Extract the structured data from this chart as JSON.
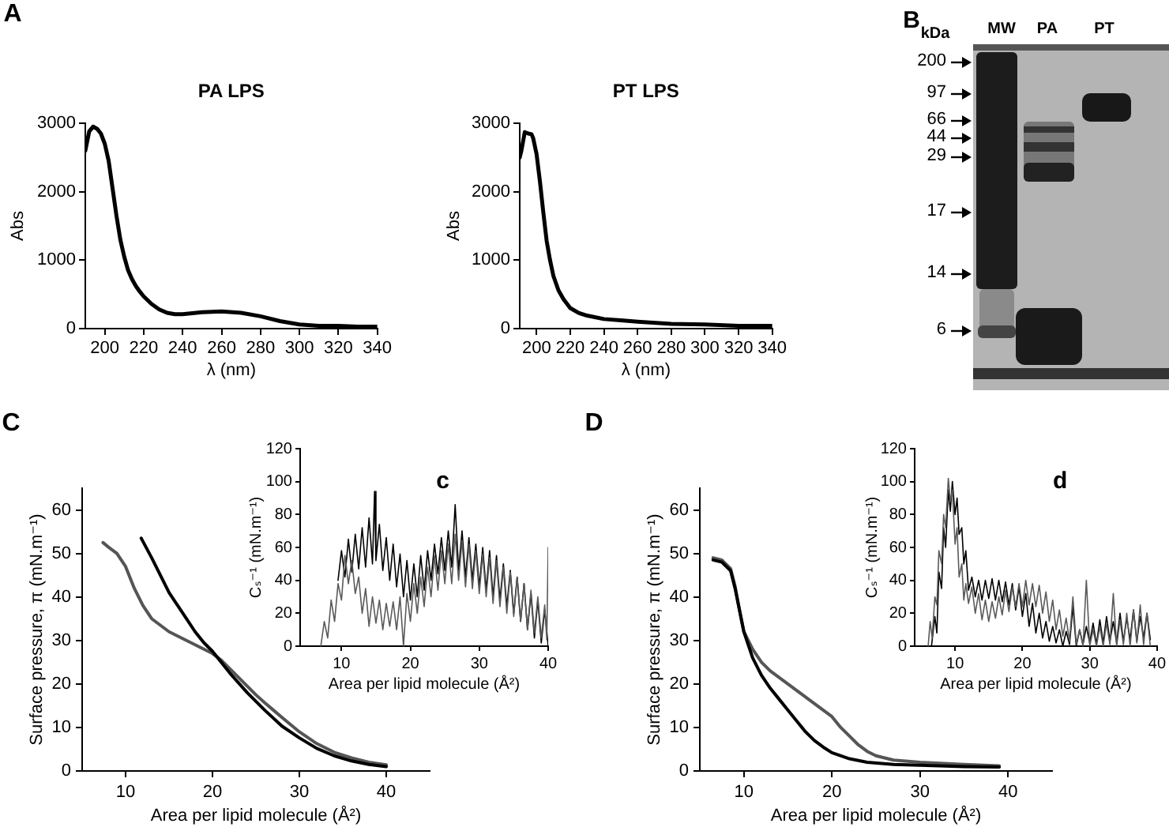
{
  "chart_data": [
    {
      "type": "line",
      "title": "PA LPS",
      "xlabel": "λ (nm)",
      "ylabel": "Abs",
      "annotations": [
        "A"
      ],
      "color": "#000000",
      "x": [
        190,
        192,
        194,
        196,
        198,
        200,
        202,
        204,
        206,
        208,
        210,
        212,
        214,
        216,
        218,
        220,
        224,
        228,
        232,
        236,
        240,
        250,
        260,
        270,
        280,
        290,
        300,
        310,
        320,
        330,
        340
      ],
      "values": [
        2600,
        2880,
        2950,
        2920,
        2850,
        2700,
        2450,
        2050,
        1650,
        1300,
        1050,
        850,
        720,
        620,
        540,
        470,
        360,
        280,
        230,
        210,
        210,
        240,
        250,
        230,
        180,
        110,
        60,
        40,
        40,
        30,
        30
      ],
      "xlim": [
        190,
        340
      ],
      "xticks": [
        200,
        220,
        240,
        260,
        280,
        300,
        320,
        340
      ],
      "ylim": [
        0,
        3000
      ],
      "yticks": [
        0,
        1000,
        2000,
        3000
      ]
    },
    {
      "type": "line",
      "title": "PT LPS",
      "xlabel": "λ (nm)",
      "ylabel": "Abs",
      "color": "#000000",
      "x": [
        190,
        191,
        193,
        195,
        197,
        198,
        200,
        202,
        204,
        206,
        208,
        210,
        213,
        216,
        220,
        225,
        230,
        240,
        250,
        260,
        280,
        300,
        320,
        340
      ],
      "values": [
        2500,
        2600,
        2870,
        2850,
        2840,
        2780,
        2550,
        2150,
        1700,
        1280,
        1000,
        770,
        560,
        430,
        300,
        230,
        190,
        140,
        120,
        100,
        70,
        60,
        40,
        40
      ],
      "xlim": [
        190,
        340
      ],
      "xticks": [
        200,
        220,
        240,
        260,
        280,
        300,
        320,
        340
      ],
      "ylim": [
        0,
        3000
      ],
      "yticks": [
        0,
        1000,
        2000,
        3000
      ]
    },
    {
      "type": "other",
      "annotations": [
        "B",
        "kDa",
        "MW",
        "PA",
        "PT",
        "200",
        "97",
        "66",
        "44",
        "29",
        "17",
        "14",
        "6"
      ]
    },
    {
      "type": "line",
      "xlabel": "Area per lipid molecule (Å²)",
      "ylabel": "Surface pressure, π (mN.m⁻¹)",
      "annotations": [
        "C"
      ],
      "series": [
        {
          "color": "#000000",
          "x": [
            11.8,
            13,
            14,
            15,
            16,
            17,
            18,
            19,
            20,
            22,
            24,
            26,
            28,
            30,
            32,
            34,
            36,
            38,
            40
          ],
          "values": [
            53.5,
            49,
            45,
            41,
            38,
            35,
            32,
            29.5,
            27.5,
            22.5,
            18,
            14,
            10.3,
            7.6,
            5.2,
            3.5,
            2.3,
            1.5,
            1.0
          ]
        },
        {
          "color": "#555555",
          "x": [
            7.4,
            8,
            9,
            10,
            11,
            12,
            13,
            14,
            15,
            16,
            17,
            18,
            19,
            20,
            21,
            22,
            23,
            24,
            25,
            26,
            27,
            28,
            30,
            32,
            34,
            36,
            38,
            40
          ],
          "values": [
            52.5,
            51.5,
            50,
            47,
            42,
            38,
            35,
            33.5,
            32,
            31,
            30,
            29,
            28,
            27,
            25.5,
            23.5,
            21.5,
            19.5,
            17.5,
            15.7,
            14,
            12.3,
            9,
            6.3,
            4.3,
            3,
            2,
            1.4
          ]
        }
      ],
      "xlim": [
        5,
        45
      ],
      "xticks": [
        10,
        20,
        30,
        40
      ],
      "ylim": [
        0,
        65
      ],
      "yticks": [
        0,
        10,
        20,
        30,
        40,
        50,
        60
      ]
    },
    {
      "type": "line",
      "title": "c",
      "xlabel": "Area per lipid molecule (Å²)",
      "ylabel": "Cₛ⁻¹ (mN.m⁻¹)",
      "series": [
        {
          "color": "#5a5a5a",
          "x": [
            7,
            7.5,
            8,
            8.5,
            9,
            9.5,
            10,
            10.5,
            11,
            11.5,
            12,
            12.5,
            13,
            13.5,
            14,
            14.5,
            15,
            15.5,
            16,
            16.5,
            17,
            17.5,
            18,
            18.5,
            19,
            19.5,
            20,
            20.5,
            21,
            21.5,
            22,
            22.5,
            23,
            23.5,
            24,
            24.5,
            25,
            25.5,
            26,
            26.5,
            27,
            27.5,
            28,
            28.5,
            29,
            29.5,
            30,
            30.5,
            31,
            31.5,
            32,
            32.5,
            33,
            33.5,
            34,
            34.5,
            35,
            35.5,
            36,
            36.5,
            37,
            37.5,
            38,
            38.5,
            39,
            39.5,
            39.8,
            40
          ],
          "values": [
            0,
            15,
            5,
            28,
            15,
            38,
            28,
            55,
            38,
            52,
            32,
            42,
            20,
            35,
            12,
            30,
            14,
            28,
            10,
            26,
            12,
            27,
            10,
            30,
            0,
            32,
            15,
            38,
            20,
            42,
            24,
            48,
            30,
            55,
            34,
            58,
            38,
            62,
            38,
            68,
            40,
            64,
            36,
            62,
            35,
            58,
            32,
            56,
            30,
            54,
            26,
            52,
            24,
            48,
            20,
            45,
            18,
            42,
            15,
            38,
            10,
            34,
            8,
            30,
            5,
            25,
            4,
            60
          ]
        },
        {
          "color": "#000000",
          "x": [
            9.5,
            10,
            10.5,
            11,
            11.5,
            12,
            12.5,
            13,
            13.5,
            14,
            14.5,
            14.8,
            15,
            15.5,
            16,
            16.5,
            17,
            17.5,
            18,
            18.5,
            19,
            19.5,
            20,
            20.5,
            21,
            21.5,
            22,
            22.5,
            23,
            23.5,
            24,
            24.5,
            25,
            25.5,
            26,
            26.5,
            27,
            27.5,
            28,
            28.5,
            29,
            29.5,
            30,
            30.5,
            31,
            31.5,
            32,
            32.5,
            33,
            33.5,
            34,
            34.5,
            35,
            35.5,
            36,
            36.5,
            37,
            37.5,
            38,
            38.5,
            39,
            39.5,
            40
          ],
          "values": [
            40,
            58,
            42,
            65,
            45,
            68,
            47,
            72,
            48,
            78,
            50,
            94,
            52,
            74,
            46,
            66,
            40,
            62,
            36,
            56,
            30,
            52,
            28,
            50,
            30,
            55,
            34,
            58,
            40,
            62,
            44,
            66,
            46,
            70,
            48,
            86,
            46,
            70,
            42,
            66,
            40,
            62,
            36,
            60,
            34,
            58,
            30,
            55,
            28,
            50,
            24,
            46,
            20,
            42,
            15,
            38,
            10,
            32,
            5,
            28,
            2,
            22,
            0
          ]
        }
      ],
      "xlim": [
        4,
        40
      ],
      "xticks": [
        10,
        20,
        30,
        40
      ],
      "ylim": [
        0,
        120
      ],
      "yticks": [
        0,
        20,
        40,
        60,
        80,
        100,
        120
      ]
    },
    {
      "type": "line",
      "xlabel": "Area per lipid molecule (Å²)",
      "ylabel": "Surface pressure, π (mN.m⁻¹)",
      "annotations": [
        "D"
      ],
      "series": [
        {
          "color": "#000000",
          "x": [
            6.5,
            7.5,
            8.5,
            9,
            9.5,
            10,
            11,
            12,
            13,
            14,
            15,
            16,
            17,
            18,
            19,
            20,
            22,
            24,
            27,
            30,
            35,
            39
          ],
          "values": [
            48.5,
            48,
            46,
            42,
            37,
            32,
            26,
            22,
            19,
            16.5,
            14,
            11.5,
            9,
            7,
            5.5,
            4.2,
            2.8,
            2,
            1.5,
            1.3,
            1,
            0.9
          ]
        },
        {
          "color": "#555555",
          "x": [
            6.5,
            7.5,
            8.5,
            9,
            9.5,
            10,
            11,
            12,
            13,
            14,
            15,
            16,
            17,
            18,
            19,
            20,
            21,
            22,
            23,
            24,
            25,
            27,
            30,
            35,
            39
          ],
          "values": [
            49,
            48.5,
            46.5,
            42.5,
            37,
            32,
            28,
            25,
            23,
            21.5,
            20,
            18.5,
            17,
            15.5,
            14,
            12.5,
            10,
            8,
            6,
            4.5,
            3.5,
            2.5,
            2,
            1.5,
            1.2
          ]
        }
      ],
      "xlim": [
        5,
        45
      ],
      "xticks": [
        10,
        20,
        30,
        40
      ],
      "ylim": [
        0,
        65
      ],
      "yticks": [
        0,
        10,
        20,
        30,
        40,
        50,
        60
      ]
    },
    {
      "type": "line",
      "title": "d",
      "xlabel": "Area per lipid molecule (Å²)",
      "ylabel": "Cₛ⁻¹ (mN.m⁻¹)",
      "series": [
        {
          "color": "#5a5a5a",
          "x": [
            6,
            6.3,
            6.6,
            7,
            7.3,
            7.6,
            8,
            8.3,
            8.6,
            9,
            9.3,
            9.6,
            10,
            10.3,
            10.6,
            11,
            11.3,
            11.6,
            12,
            12.5,
            13,
            13.5,
            14,
            14.5,
            15,
            15.5,
            16,
            16.5,
            17,
            17.5,
            18,
            18.5,
            19,
            19.5,
            20,
            20.5,
            21,
            21.5,
            22,
            22.5,
            23,
            23.5,
            24,
            24.5,
            25,
            25.5,
            26,
            26.5,
            27,
            27.5,
            28,
            28.5,
            29,
            29.5,
            30,
            30.5,
            31,
            31.5,
            32,
            32.5,
            33,
            33.5,
            34,
            34.5,
            35,
            35.5,
            36,
            36.5,
            37,
            37.5,
            38,
            38.5,
            39
          ],
          "values": [
            0,
            15,
            5,
            30,
            25,
            58,
            50,
            80,
            72,
            102,
            88,
            95,
            62,
            72,
            42,
            50,
            28,
            38,
            26,
            36,
            20,
            32,
            16,
            28,
            15,
            27,
            17,
            30,
            19,
            34,
            21,
            36,
            24,
            38,
            24,
            40,
            25,
            38,
            24,
            37,
            20,
            33,
            15,
            28,
            10,
            22,
            6,
            17,
            3,
            30,
            1,
            10,
            0,
            40,
            0,
            10,
            0,
            12,
            0,
            14,
            1,
            32,
            0,
            16,
            1,
            20,
            0,
            22,
            2,
            25,
            1,
            20,
            0
          ]
        },
        {
          "color": "#000000",
          "x": [
            6.5,
            7,
            7.3,
            7.6,
            8,
            8.3,
            8.6,
            9,
            9.3,
            9.6,
            10,
            10.3,
            10.6,
            11,
            11.3,
            11.6,
            12,
            12.5,
            13,
            13.5,
            14,
            14.5,
            15,
            15.5,
            16,
            16.5,
            17,
            17.5,
            18,
            18.5,
            19,
            19.5,
            20,
            20.5,
            21,
            21.5,
            22,
            22.5,
            23,
            23.5,
            24,
            24.5,
            25,
            25.5,
            26,
            26.5,
            27,
            27.5,
            28,
            28.5,
            29,
            29.5,
            30,
            30.5,
            31,
            31.5,
            32,
            32.5,
            33,
            33.5,
            34,
            34.5,
            35,
            35.5,
            36,
            36.5,
            37,
            37.5,
            38,
            38.5,
            39
          ],
          "values": [
            0,
            18,
            8,
            45,
            35,
            72,
            60,
            95,
            82,
            100,
            80,
            90,
            68,
            72,
            50,
            58,
            34,
            42,
            30,
            40,
            28,
            40,
            29,
            41,
            28,
            40,
            27,
            39,
            25,
            38,
            22,
            36,
            18,
            32,
            12,
            26,
            8,
            20,
            5,
            15,
            3,
            12,
            2,
            10,
            0,
            9,
            1,
            24,
            0,
            10,
            1,
            12,
            2,
            14,
            1,
            16,
            2,
            18,
            3,
            15,
            2,
            20,
            3,
            17,
            4,
            22,
            3,
            18,
            5,
            20,
            4
          ]
        }
      ],
      "xlim": [
        4,
        40
      ],
      "xticks": [
        10,
        20,
        30,
        40
      ],
      "ylim": [
        0,
        120
      ],
      "yticks": [
        0,
        20,
        40,
        60,
        80,
        100,
        120
      ]
    }
  ]
}
